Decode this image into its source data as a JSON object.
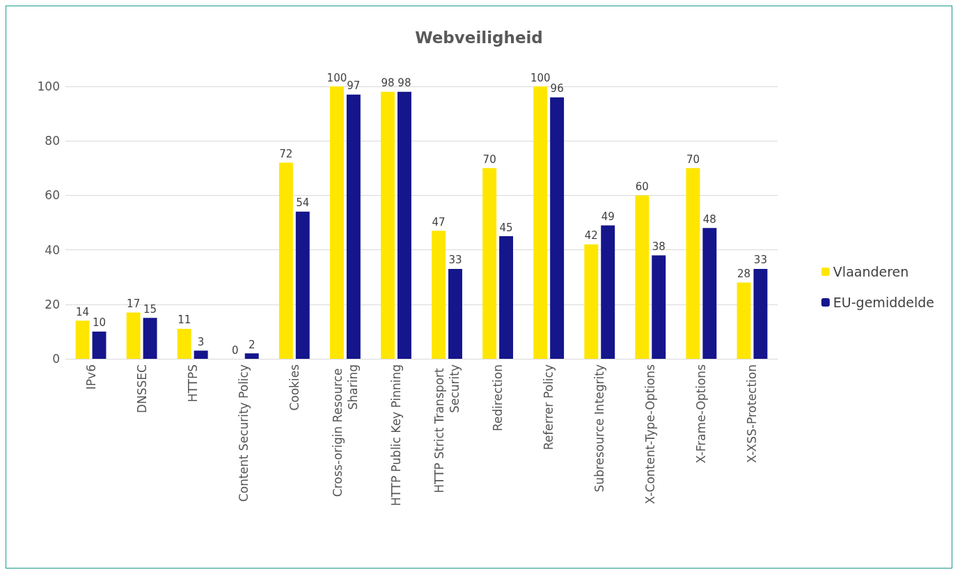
{
  "chart_data": {
    "type": "bar",
    "title": "Webveiligheid",
    "categories": [
      "IPv6",
      "DNSSEC",
      "HTTPS",
      "Content Security Policy",
      "Cookies",
      "Cross-origin Resource Sharing",
      "HTTP Public Key Pinning",
      "HTTP Strict Transport Security",
      "Redirection",
      "Referrer Policy",
      "Subresource Integrity",
      "X-Content-Type-Options",
      "X-Frame-Options",
      "X-XSS-Protection"
    ],
    "series": [
      {
        "name": "Vlaanderen",
        "color": "#ffe600",
        "values": [
          14,
          17,
          11,
          0,
          72,
          100,
          98,
          47,
          70,
          100,
          42,
          60,
          70,
          28
        ]
      },
      {
        "name": "EU-gemiddelde",
        "color": "#15158c",
        "values": [
          10,
          15,
          3,
          2,
          54,
          97,
          98,
          33,
          45,
          96,
          49,
          38,
          48,
          33
        ]
      }
    ],
    "ylim": [
      0,
      100
    ],
    "yticks": [
      0,
      20,
      40,
      60,
      80,
      100
    ],
    "grid": "y",
    "legend": "right",
    "data_labels": true
  }
}
